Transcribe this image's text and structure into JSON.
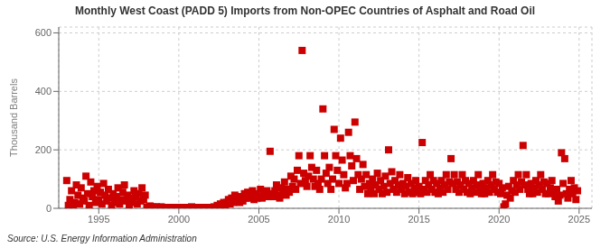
{
  "chart_data": {
    "type": "scatter",
    "title": "Monthly West Coast (PADD 5) Imports from Non-OPEC Countries of Asphalt and Road Oil",
    "ylabel": "Thousand Barrels",
    "annotations": [
      "Source: U.S. Energy Information Administration"
    ],
    "color": "#cc0000",
    "marker": "square",
    "grid": true,
    "xlim": [
      1992.5,
      2025.8
    ],
    "ylim": [
      0,
      620
    ],
    "xticks": [
      1995,
      2000,
      2005,
      2010,
      2015,
      2020,
      2025
    ],
    "yticks": [
      0,
      200,
      400,
      600
    ],
    "x": [
      1993.0,
      1993.1,
      1993.2,
      1993.3,
      1993.4,
      1993.5,
      1993.6,
      1993.7,
      1993.8,
      1993.9,
      1994.0,
      1994.1,
      1994.2,
      1994.3,
      1994.4,
      1994.5,
      1994.6,
      1994.7,
      1994.8,
      1994.9,
      1995.0,
      1995.1,
      1995.2,
      1995.3,
      1995.4,
      1995.5,
      1995.6,
      1995.7,
      1995.8,
      1995.9,
      1996.0,
      1996.1,
      1996.2,
      1996.3,
      1996.4,
      1996.5,
      1996.6,
      1996.7,
      1996.8,
      1996.9,
      1997.0,
      1997.1,
      1997.2,
      1997.3,
      1997.4,
      1997.5,
      1997.6,
      1997.7,
      1997.8,
      1997.9,
      1998.0,
      1998.1,
      1998.2,
      1998.3,
      1998.4,
      1998.5,
      1998.6,
      1998.7,
      1998.8,
      1998.9,
      1999.0,
      1999.1,
      1999.2,
      1999.3,
      1999.4,
      1999.5,
      1999.6,
      1999.7,
      1999.8,
      1999.9,
      2000.0,
      2000.1,
      2000.2,
      2000.3,
      2000.4,
      2000.5,
      2000.6,
      2000.7,
      2000.8,
      2000.9,
      2001.0,
      2001.1,
      2001.2,
      2001.3,
      2001.4,
      2001.5,
      2001.6,
      2001.7,
      2001.8,
      2001.9,
      2002.0,
      2002.1,
      2002.2,
      2002.3,
      2002.4,
      2002.5,
      2002.6,
      2002.7,
      2002.8,
      2002.9,
      2003.0,
      2003.1,
      2003.2,
      2003.3,
      2003.4,
      2003.5,
      2003.6,
      2003.7,
      2003.8,
      2003.9,
      2004.0,
      2004.1,
      2004.2,
      2004.3,
      2004.4,
      2004.5,
      2004.6,
      2004.7,
      2004.8,
      2004.9,
      2005.0,
      2005.1,
      2005.2,
      2005.3,
      2005.4,
      2005.5,
      2005.6,
      2005.7,
      2005.8,
      2005.9,
      2006.0,
      2006.1,
      2006.2,
      2006.3,
      2006.4,
      2006.5,
      2006.6,
      2006.7,
      2006.8,
      2006.9,
      2007.0,
      2007.1,
      2007.2,
      2007.3,
      2007.4,
      2007.5,
      2007.6,
      2007.7,
      2007.8,
      2007.9,
      2008.0,
      2008.1,
      2008.2,
      2008.3,
      2008.4,
      2008.5,
      2008.6,
      2008.7,
      2008.8,
      2008.9,
      2009.0,
      2009.1,
      2009.2,
      2009.3,
      2009.4,
      2009.5,
      2009.6,
      2009.7,
      2009.8,
      2009.9,
      2010.0,
      2010.1,
      2010.2,
      2010.3,
      2010.4,
      2010.5,
      2010.6,
      2010.7,
      2010.8,
      2010.9,
      2011.0,
      2011.1,
      2011.2,
      2011.3,
      2011.4,
      2011.5,
      2011.6,
      2011.7,
      2011.8,
      2011.9,
      2012.0,
      2012.1,
      2012.2,
      2012.3,
      2012.4,
      2012.5,
      2012.6,
      2012.7,
      2012.8,
      2012.9,
      2013.0,
      2013.1,
      2013.2,
      2013.3,
      2013.4,
      2013.5,
      2013.6,
      2013.7,
      2013.8,
      2013.9,
      2014.0,
      2014.1,
      2014.2,
      2014.3,
      2014.4,
      2014.5,
      2014.6,
      2014.7,
      2014.8,
      2014.9,
      2015.0,
      2015.1,
      2015.2,
      2015.3,
      2015.4,
      2015.5,
      2015.6,
      2015.7,
      2015.8,
      2015.9,
      2016.0,
      2016.1,
      2016.2,
      2016.3,
      2016.4,
      2016.5,
      2016.6,
      2016.7,
      2016.8,
      2016.9,
      2017.0,
      2017.1,
      2017.2,
      2017.3,
      2017.4,
      2017.5,
      2017.6,
      2017.7,
      2017.8,
      2017.9,
      2018.0,
      2018.1,
      2018.2,
      2018.3,
      2018.4,
      2018.5,
      2018.6,
      2018.7,
      2018.8,
      2018.9,
      2019.0,
      2019.1,
      2019.2,
      2019.3,
      2019.4,
      2019.5,
      2019.6,
      2019.7,
      2019.8,
      2019.9,
      2020.0,
      2020.1,
      2020.2,
      2020.3,
      2020.4,
      2020.5,
      2020.6,
      2020.7,
      2020.8,
      2020.9,
      2021.0,
      2021.1,
      2021.2,
      2021.3,
      2021.4,
      2021.5,
      2021.6,
      2021.7,
      2021.8,
      2021.9,
      2022.0,
      2022.1,
      2022.2,
      2022.3,
      2022.4,
      2022.5,
      2022.6,
      2022.7,
      2022.8,
      2022.9,
      2023.0,
      2023.1,
      2023.2,
      2023.3,
      2023.4,
      2023.5,
      2023.6,
      2023.7,
      2023.8,
      2023.9,
      2024.0,
      2024.1,
      2024.2,
      2024.3,
      2024.4,
      2024.5,
      2024.6,
      2024.7,
      2024.8,
      2024.9
    ],
    "values": [
      95,
      10,
      30,
      60,
      5,
      20,
      80,
      45,
      15,
      70,
      35,
      25,
      110,
      50,
      10,
      90,
      40,
      60,
      20,
      75,
      30,
      55,
      15,
      85,
      45,
      25,
      65,
      35,
      10,
      50,
      20,
      40,
      70,
      15,
      30,
      55,
      80,
      25,
      45,
      10,
      35,
      20,
      60,
      40,
      15,
      50,
      25,
      70,
      30,
      45,
      5,
      2,
      8,
      3,
      5,
      2,
      5,
      2,
      3,
      5,
      2,
      2,
      3,
      2,
      3,
      2,
      2,
      2,
      2,
      2,
      2,
      2,
      3,
      2,
      2,
      2,
      2,
      2,
      5,
      2,
      2,
      3,
      2,
      3,
      2,
      2,
      3,
      2,
      2,
      3,
      2,
      2,
      5,
      3,
      10,
      5,
      15,
      8,
      20,
      10,
      20,
      30,
      15,
      35,
      20,
      45,
      25,
      35,
      20,
      40,
      25,
      50,
      35,
      55,
      35,
      45,
      60,
      30,
      50,
      35,
      40,
      65,
      35,
      55,
      45,
      60,
      40,
      195,
      50,
      40,
      60,
      80,
      45,
      35,
      70,
      55,
      90,
      45,
      65,
      55,
      110,
      75,
      100,
      65,
      130,
      180,
      85,
      540,
      120,
      95,
      75,
      110,
      180,
      140,
      100,
      75,
      130,
      85,
      65,
      100,
      340,
      180,
      120,
      85,
      140,
      65,
      100,
      270,
      180,
      130,
      85,
      240,
      165,
      115,
      70,
      85,
      260,
      180,
      145,
      95,
      295,
      170,
      115,
      65,
      100,
      150,
      75,
      115,
      50,
      85,
      65,
      100,
      50,
      80,
      120,
      65,
      95,
      50,
      75,
      110,
      55,
      200,
      85,
      125,
      65,
      95,
      55,
      80,
      115,
      65,
      85,
      50,
      75,
      105,
      55,
      85,
      50,
      70,
      95,
      55,
      75,
      50,
      225,
      65,
      95,
      55,
      80,
      115,
      65,
      95,
      55,
      85,
      50,
      70,
      95,
      55,
      80,
      115,
      65,
      90,
      170,
      85,
      115,
      65,
      90,
      55,
      80,
      115,
      65,
      95,
      55,
      85,
      50,
      70,
      95,
      55,
      80,
      115,
      65,
      50,
      85,
      50,
      70,
      95,
      55,
      80,
      115,
      65,
      90,
      55,
      85,
      50,
      70,
      5,
      15,
      45,
      75,
      35,
      60,
      95,
      55,
      80,
      115,
      65,
      90,
      215,
      80,
      115,
      65,
      50,
      85,
      50,
      70,
      95,
      55,
      80,
      115,
      65,
      90,
      50,
      85,
      50,
      70,
      95,
      55,
      40,
      65,
      25,
      45,
      190,
      85,
      170,
      50,
      35,
      65,
      95,
      50,
      70,
      30,
      60
    ]
  }
}
